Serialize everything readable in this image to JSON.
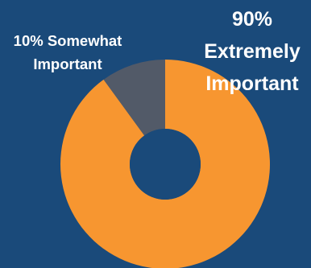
{
  "chart_data": {
    "type": "pie",
    "donut": true,
    "slices": [
      {
        "label": "Extremely Important",
        "value": 90,
        "color": "#f79630"
      },
      {
        "label": "Somewhat Important",
        "value": 10,
        "color": "#525a68"
      }
    ],
    "labels": {
      "small": {
        "line1": "10% Somewhat",
        "line2": "Important"
      },
      "big": {
        "line1": "90%",
        "line2": "Extremely",
        "line3": "Important"
      }
    },
    "background_color": "#1a4a7a",
    "label_color": "#ffffff"
  }
}
